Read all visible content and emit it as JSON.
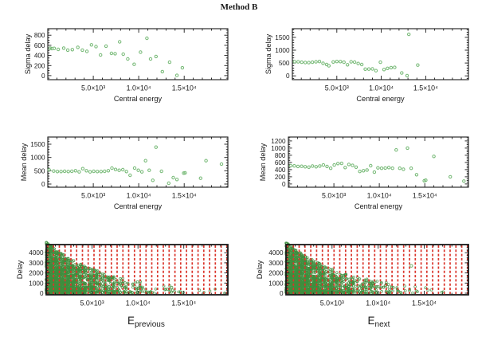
{
  "title": "Method B",
  "colors": {
    "background": "#ffffff",
    "axis": "#1a1a1a",
    "point_green": "#74b874",
    "cloud_green": "#3f8f3f",
    "grid_red": "#da342a",
    "text": "#1a1a1a"
  },
  "chart_data": [
    {
      "name": "sigma-delay-left",
      "type": "scatter",
      "ylabel": "Sigma delay",
      "xlabel": "Central energy",
      "xlim": [
        0,
        19800
      ],
      "ylim": [
        -80,
        930
      ],
      "xticks": [
        {
          "v": 5000,
          "label": "5.0×10³"
        },
        {
          "v": 10000,
          "label": "1.0×10⁴"
        },
        {
          "v": 15000,
          "label": "1.5×10⁴"
        }
      ],
      "x_minor": 1000,
      "yticks": [
        0,
        200,
        400,
        600,
        800
      ],
      "y_minor": 50,
      "grid": "off",
      "points": [
        [
          250,
          545
        ],
        [
          450,
          535
        ],
        [
          700,
          540
        ],
        [
          1150,
          520
        ],
        [
          1750,
          545
        ],
        [
          2200,
          505
        ],
        [
          2700,
          515
        ],
        [
          3300,
          560
        ],
        [
          3800,
          505
        ],
        [
          4300,
          480
        ],
        [
          4800,
          610
        ],
        [
          5300,
          575
        ],
        [
          5800,
          410
        ],
        [
          6400,
          585
        ],
        [
          7000,
          440
        ],
        [
          7400,
          435
        ],
        [
          7900,
          670
        ],
        [
          8300,
          425
        ],
        [
          8800,
          330
        ],
        [
          9500,
          225
        ],
        [
          10200,
          465
        ],
        [
          10900,
          740
        ],
        [
          11300,
          330
        ],
        [
          11900,
          380
        ],
        [
          12600,
          80
        ],
        [
          13400,
          265
        ],
        [
          14200,
          5
        ],
        [
          14800,
          155
        ]
      ]
    },
    {
      "name": "sigma-delay-right",
      "type": "scatter",
      "ylabel": "Sigma delay",
      "xlabel": "Central energy",
      "xlim": [
        0,
        19800
      ],
      "ylim": [
        -150,
        1840
      ],
      "xticks": [
        {
          "v": 5000,
          "label": "5.0×10³"
        },
        {
          "v": 10000,
          "label": "1.0×10⁴"
        },
        {
          "v": 15000,
          "label": "1.5×10⁴"
        }
      ],
      "x_minor": 1000,
      "yticks": [
        0,
        500,
        1000,
        1500
      ],
      "y_minor": 100,
      "grid": "off",
      "points": [
        [
          250,
          550
        ],
        [
          650,
          545
        ],
        [
          1050,
          530
        ],
        [
          1450,
          520
        ],
        [
          1850,
          515
        ],
        [
          2250,
          530
        ],
        [
          2650,
          545
        ],
        [
          3050,
          560
        ],
        [
          3450,
          490
        ],
        [
          3850,
          445
        ],
        [
          4100,
          390
        ],
        [
          4600,
          540
        ],
        [
          5000,
          560
        ],
        [
          5400,
          555
        ],
        [
          5800,
          530
        ],
        [
          6200,
          430
        ],
        [
          6600,
          545
        ],
        [
          7000,
          535
        ],
        [
          7400,
          480
        ],
        [
          7800,
          440
        ],
        [
          8200,
          260
        ],
        [
          8600,
          265
        ],
        [
          9000,
          270
        ],
        [
          9400,
          200
        ],
        [
          9900,
          530
        ],
        [
          10300,
          245
        ],
        [
          10700,
          290
        ],
        [
          11100,
          320
        ],
        [
          11500,
          330
        ],
        [
          12300,
          110
        ],
        [
          12900,
          10
        ],
        [
          13100,
          1620
        ],
        [
          14100,
          420
        ]
      ]
    },
    {
      "name": "mean-delay-left",
      "type": "scatter",
      "ylabel": "Mean delay",
      "xlabel": "Central energy",
      "xlim": [
        0,
        19800
      ],
      "ylim": [
        -120,
        1770
      ],
      "xticks": [
        {
          "v": 5000,
          "label": "5.0×10³"
        },
        {
          "v": 10000,
          "label": "1.0×10⁴"
        },
        {
          "v": 15000,
          "label": "1.5×10⁴"
        }
      ],
      "x_minor": 1000,
      "yticks": [
        0,
        500,
        1000,
        1500
      ],
      "y_minor": 100,
      "grid": "off",
      "points": [
        [
          150,
          530
        ],
        [
          650,
          490
        ],
        [
          1050,
          470
        ],
        [
          1450,
          470
        ],
        [
          1850,
          480
        ],
        [
          2250,
          470
        ],
        [
          2650,
          480
        ],
        [
          3050,
          500
        ],
        [
          3450,
          460
        ],
        [
          3850,
          580
        ],
        [
          4250,
          500
        ],
        [
          4650,
          460
        ],
        [
          5050,
          480
        ],
        [
          5450,
          470
        ],
        [
          5850,
          470
        ],
        [
          6250,
          480
        ],
        [
          6650,
          500
        ],
        [
          7050,
          600
        ],
        [
          7450,
          550
        ],
        [
          7850,
          520
        ],
        [
          8250,
          540
        ],
        [
          8650,
          470
        ],
        [
          9050,
          330
        ],
        [
          9550,
          600
        ],
        [
          9950,
          520
        ],
        [
          10350,
          460
        ],
        [
          10750,
          880
        ],
        [
          11150,
          520
        ],
        [
          11550,
          140
        ],
        [
          11900,
          1390
        ],
        [
          12500,
          480
        ],
        [
          13300,
          30
        ],
        [
          13800,
          240
        ],
        [
          14200,
          170
        ],
        [
          14950,
          410
        ],
        [
          15100,
          420
        ],
        [
          16800,
          220
        ],
        [
          17400,
          880
        ],
        [
          19100,
          750
        ]
      ]
    },
    {
      "name": "mean-delay-right",
      "type": "scatter",
      "ylabel": "Mean delay",
      "xlabel": "Central energy",
      "xlim": [
        0,
        19800
      ],
      "ylim": [
        -90,
        1310
      ],
      "xticks": [
        {
          "v": 5000,
          "label": "5.0×10³"
        },
        {
          "v": 10000,
          "label": "1.0×10⁴"
        },
        {
          "v": 15000,
          "label": "1.5×10⁴"
        }
      ],
      "x_minor": 1000,
      "yticks": [
        0,
        200,
        400,
        600,
        800,
        1000,
        1200
      ],
      "y_minor": 50,
      "grid": "off",
      "points": [
        [
          250,
          510
        ],
        [
          650,
          505
        ],
        [
          1050,
          490
        ],
        [
          1450,
          495
        ],
        [
          1850,
          480
        ],
        [
          2250,
          470
        ],
        [
          2650,
          500
        ],
        [
          3050,
          480
        ],
        [
          3450,
          500
        ],
        [
          3850,
          530
        ],
        [
          4250,
          490
        ],
        [
          4650,
          440
        ],
        [
          5050,
          530
        ],
        [
          5450,
          570
        ],
        [
          5850,
          575
        ],
        [
          6250,
          460
        ],
        [
          6650,
          545
        ],
        [
          7050,
          520
        ],
        [
          7450,
          470
        ],
        [
          7850,
          350
        ],
        [
          8250,
          370
        ],
        [
          8650,
          390
        ],
        [
          9050,
          510
        ],
        [
          9450,
          330
        ],
        [
          9850,
          450
        ],
        [
          10250,
          440
        ],
        [
          10650,
          445
        ],
        [
          11050,
          460
        ],
        [
          11450,
          440
        ],
        [
          11850,
          950
        ],
        [
          12250,
          440
        ],
        [
          12650,
          410
        ],
        [
          13100,
          1000
        ],
        [
          13500,
          440
        ],
        [
          14100,
          260
        ],
        [
          14950,
          90
        ],
        [
          15100,
          105
        ],
        [
          16000,
          770
        ],
        [
          17800,
          200
        ],
        [
          19300,
          80
        ]
      ]
    },
    {
      "name": "delay-vs-e-previous",
      "type": "scatter",
      "ylabel": "Delay",
      "xlabel": {
        "base": "E",
        "sub": "previous"
      },
      "xlim": [
        0,
        19800
      ],
      "ylim": [
        -160,
        4800
      ],
      "xticks": [
        {
          "v": 5000,
          "label": "5.0×10³"
        },
        {
          "v": 10000,
          "label": "1.0×10⁴"
        },
        {
          "v": 15000,
          "label": "1.5×10⁴"
        }
      ],
      "x_minor": 1000,
      "yticks": [
        0,
        1000,
        2000,
        3000,
        4000
      ],
      "y_minor": 250,
      "grid": "vertical-red-dashed",
      "vgrid": {
        "start": 170,
        "step": 630
      },
      "cloud": {
        "distribution": "exponential-decay",
        "count": 1800,
        "seed": 7,
        "x_decay": 2800,
        "env_base": 4900,
        "env_decay": 6500,
        "env_floor": 140,
        "y_pow": 1.5
      },
      "points": []
    },
    {
      "name": "delay-vs-e-next",
      "type": "scatter",
      "ylabel": "Delay",
      "xlabel": {
        "base": "E",
        "sub": "next"
      },
      "xlim": [
        0,
        19800
      ],
      "ylim": [
        -160,
        4800
      ],
      "xticks": [
        {
          "v": 5000,
          "label": "5.0×10³"
        },
        {
          "v": 10000,
          "label": "1.0×10⁴"
        },
        {
          "v": 15000,
          "label": "1.5×10⁴"
        }
      ],
      "x_minor": 1000,
      "yticks": [
        0,
        1000,
        2000,
        3000,
        4000
      ],
      "y_minor": 250,
      "grid": "vertical-red-dashed",
      "vgrid": {
        "start": 170,
        "step": 630
      },
      "cloud": {
        "distribution": "exponential-decay",
        "count": 1800,
        "seed": 13,
        "x_decay": 2800,
        "env_base": 4900,
        "env_decay": 6500,
        "env_floor": 140,
        "y_pow": 1.5
      },
      "points": [
        [
          13600,
          2700
        ]
      ]
    }
  ]
}
